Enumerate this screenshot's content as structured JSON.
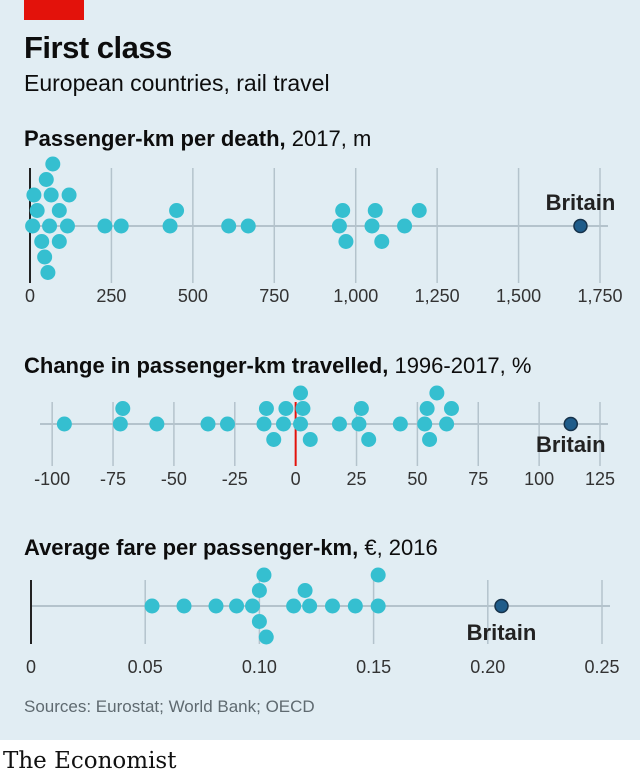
{
  "header": {
    "title": "First class",
    "subtitle": "European countries, rail travel"
  },
  "footer": {
    "source": "Sources: Eurostat; World Bank; OECD",
    "brand": "The Economist"
  },
  "colors": {
    "dot": "#35bfd0",
    "britain": "#1f5c8a",
    "axis": "#b4c3cc",
    "zero_line_dark": "#222222",
    "zero_line_red": "#e3120b",
    "background": "#e1edf3",
    "brand_red": "#e3120b"
  },
  "chart_data": [
    {
      "type": "scatter",
      "title_bold": "Passenger-km per death,",
      "title_rest": " 2017, m",
      "xlim": [
        0,
        1750
      ],
      "ticks": [
        0,
        250,
        500,
        750,
        1000,
        1250,
        1500,
        1750
      ],
      "tick_labels": [
        "0",
        "250",
        "500",
        "750",
        "1,000",
        "1,250",
        "1,500",
        "1,750"
      ],
      "zero_line": "dark",
      "countries": [
        8,
        50,
        55,
        65,
        90,
        115,
        12,
        120,
        22,
        36,
        45,
        60,
        70,
        90,
        230,
        280,
        430,
        450,
        610,
        670,
        950,
        960,
        970,
        1050,
        1060,
        1080,
        1150,
        1195
      ],
      "britain": {
        "label": "Britain",
        "value": 1690
      }
    },
    {
      "type": "scatter",
      "title_bold": "Change in passenger-km travelled,",
      "title_rest": " 1996-2017, %",
      "xlim": [
        -105,
        125
      ],
      "ticks": [
        -100,
        -75,
        -50,
        -25,
        0,
        25,
        50,
        75,
        100,
        125
      ],
      "tick_labels": [
        "-100",
        "-75",
        "-50",
        "-25",
        "0",
        "25",
        "50",
        "75",
        "100",
        "125"
      ],
      "zero_line": "red",
      "countries": [
        -95,
        -72,
        -71,
        -57,
        -36,
        -28,
        -13,
        -12,
        -9,
        -5,
        -4,
        2,
        2,
        3,
        6,
        18,
        26,
        27,
        30,
        43,
        53,
        54,
        55,
        58,
        62,
        64
      ],
      "britain": {
        "label": "Britain",
        "value": 113
      }
    },
    {
      "type": "scatter",
      "title_bold": "Average fare per passenger-km,",
      "title_rest": " €, 2016",
      "xlim": [
        0,
        0.25
      ],
      "ticks": [
        0,
        0.05,
        0.1,
        0.15,
        0.2,
        0.25
      ],
      "tick_labels": [
        "0",
        "0.05",
        "0.10",
        "0.15",
        "0.20",
        "0.25"
      ],
      "zero_line": "dark",
      "countries": [
        0.053,
        0.067,
        0.081,
        0.09,
        0.097,
        0.1,
        0.1,
        0.102,
        0.103,
        0.115,
        0.12,
        0.122,
        0.132,
        0.142,
        0.152,
        0.152
      ],
      "britain": {
        "label": "Britain",
        "value": 0.206
      }
    }
  ]
}
